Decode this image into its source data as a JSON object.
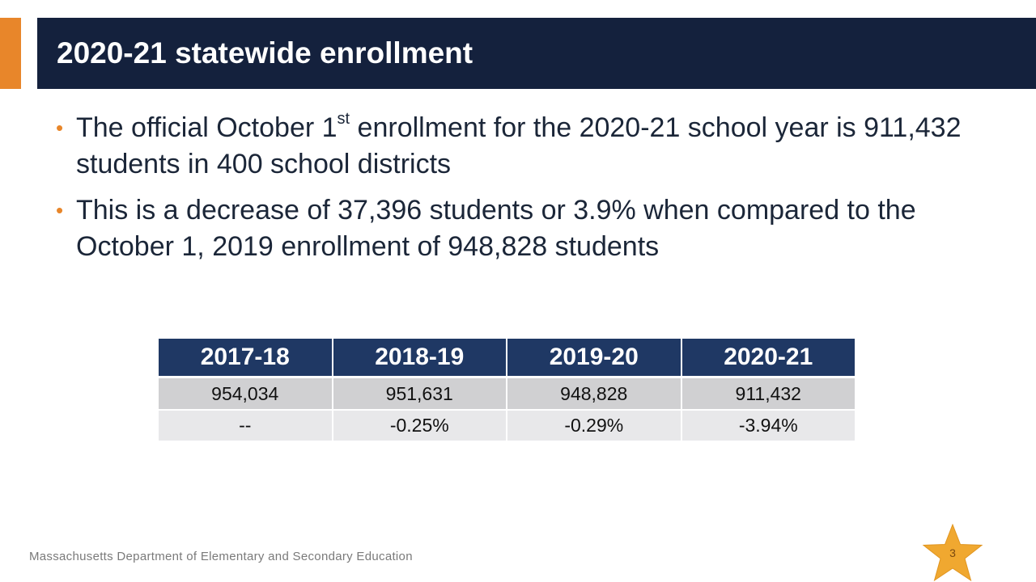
{
  "slide": {
    "title": "2020-21 statewide enrollment",
    "bullets": [
      {
        "before_sup": "The official October 1",
        "sup": "st",
        "after_sup": " enrollment for the 2020-21 school year is 911,432 students in 400 school districts"
      },
      {
        "text": "This is a decrease of 37,396 students or 3.9% when compared to the October 1, 2019 enrollment of 948,828 students"
      }
    ],
    "table": {
      "headers": [
        "2017-18",
        "2018-19",
        "2019-20",
        "2020-21"
      ],
      "enrollment": [
        "954,034",
        "951,631",
        "948,828",
        "911,432"
      ],
      "change": [
        "--",
        "-0.25%",
        "-0.29%",
        "-3.94%"
      ]
    },
    "footer": "Massachusetts Department of Elementary and Secondary Education",
    "page_number": "3"
  },
  "colors": {
    "title_bar": "#14213d",
    "accent": "#e8862a",
    "table_header": "#1f3864",
    "row_a": "#d0d0d2",
    "row_b": "#e8e8ea",
    "star": "#f0a830"
  },
  "icons": {
    "page_badge": "star-icon"
  }
}
